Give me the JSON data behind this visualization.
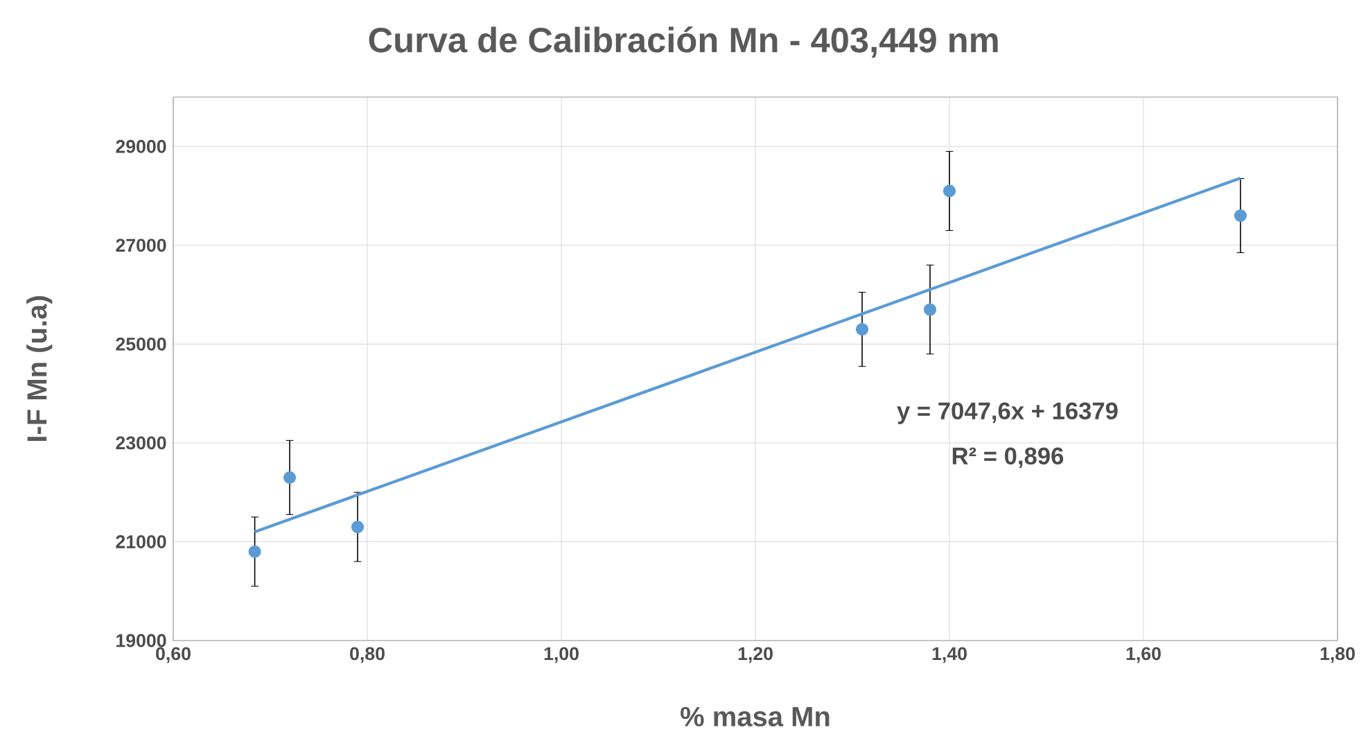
{
  "chart_data": {
    "type": "scatter",
    "title": "Curva de Calibración Mn - 403,449 nm",
    "xlabel": "% masa Mn",
    "ylabel": "I-F Mn (u.a)",
    "series": [
      {
        "color": "#5b9bd5",
        "marker": "circle",
        "x": [
          0.684,
          0.72,
          0.79,
          1.31,
          1.38,
          1.4,
          1.7
        ],
        "values": [
          20800,
          22300,
          21300,
          25300,
          25700,
          28100,
          27600
        ],
        "errors": [
          700,
          750,
          700,
          750,
          900,
          800,
          750
        ]
      },
      {
        "type": "line",
        "color": "#5b9bd5",
        "marker": "none",
        "x": [
          0.684,
          1.7
        ],
        "values": [
          21200,
          28360
        ]
      }
    ],
    "annotations": [
      "y = 7047,6x + 16379",
      "R² = 0,896"
    ],
    "xlim": [
      0.6,
      1.8
    ],
    "ylim": [
      19000,
      30000
    ],
    "xticks": [
      {
        "value": 0.6,
        "label": "0,60"
      },
      {
        "value": 0.8,
        "label": "0,80"
      },
      {
        "value": 1.0,
        "label": "1,00"
      },
      {
        "value": 1.2,
        "label": "1,20"
      },
      {
        "value": 1.4,
        "label": "1,40"
      },
      {
        "value": 1.6,
        "label": "1,60"
      },
      {
        "value": 1.8,
        "label": "1,80"
      }
    ],
    "yticks": [
      19000,
      21000,
      23000,
      25000,
      27000,
      29000
    ],
    "grid": true
  }
}
